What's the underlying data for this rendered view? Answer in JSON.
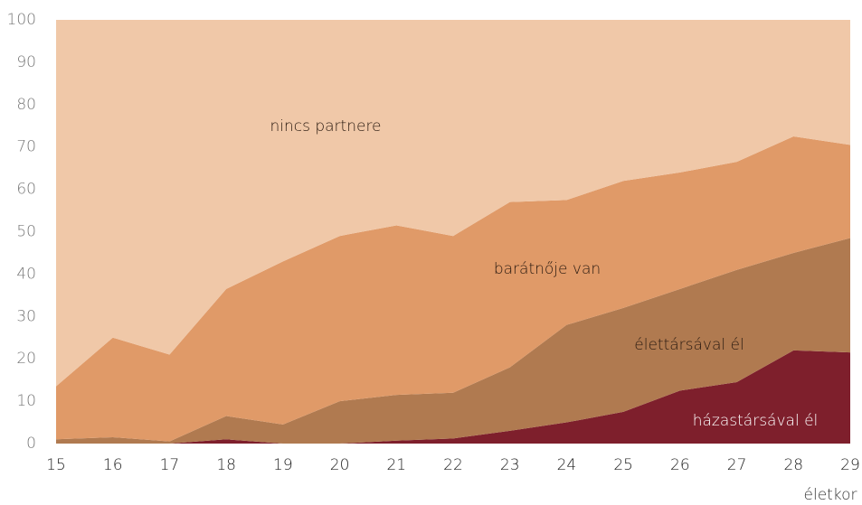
{
  "chart_data": {
    "type": "stacked_area",
    "x": [
      15,
      16,
      17,
      18,
      19,
      20,
      21,
      22,
      23,
      24,
      25,
      26,
      27,
      28,
      29
    ],
    "series": [
      {
        "name": "házastársával él",
        "color": "#7e1f2c",
        "values": [
          0,
          0,
          0,
          1,
          0,
          0,
          0.7,
          1.2,
          3,
          5,
          7.5,
          12.5,
          14.5,
          22,
          21.5
        ]
      },
      {
        "name": "élettársával él",
        "color": "#b07a50",
        "values": [
          1,
          1.5,
          0.5,
          5.5,
          4.5,
          10,
          10.8,
          10.8,
          15,
          23,
          24.5,
          24,
          26.5,
          23,
          27
        ]
      },
      {
        "name": "barátnője van",
        "color": "#e09a68",
        "values": [
          12.5,
          23.5,
          20.5,
          30,
          38.5,
          39,
          40,
          37,
          39,
          29.5,
          30,
          27.5,
          25.5,
          27.5,
          22
        ]
      },
      {
        "name": "nincs partnere",
        "color": "#f0c8a8",
        "values": [
          86.5,
          75,
          79,
          63.5,
          57,
          51,
          48.5,
          51,
          43,
          42.5,
          38,
          36,
          33.5,
          27.5,
          29.5
        ]
      }
    ],
    "x_label": "életkor",
    "xlim": [
      15,
      29
    ],
    "xticks": [
      15,
      16,
      17,
      18,
      19,
      20,
      21,
      22,
      23,
      24,
      25,
      26,
      27,
      28,
      29
    ],
    "ylim": [
      0,
      100
    ],
    "yticks": [
      0,
      10,
      20,
      30,
      40,
      50,
      60,
      70,
      80,
      90,
      100
    ],
    "grid": false
  }
}
